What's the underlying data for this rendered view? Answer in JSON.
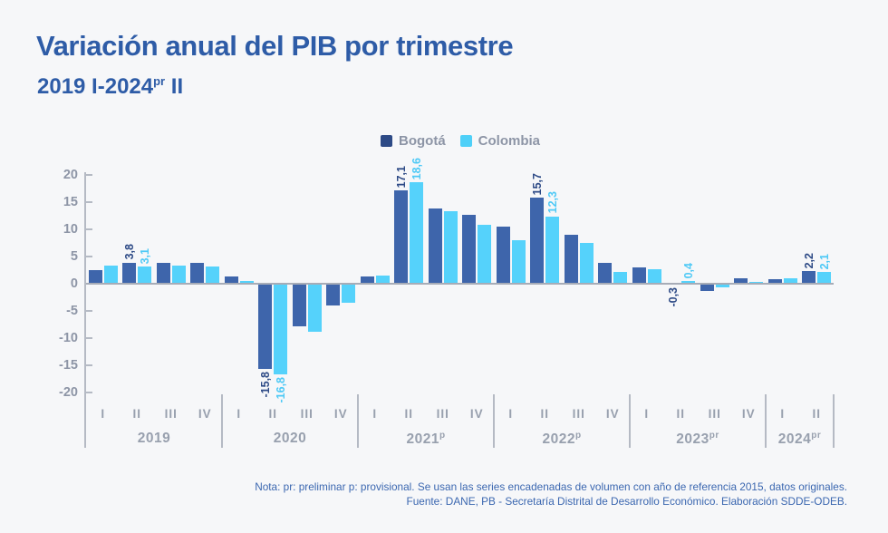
{
  "header": {
    "title": "Variación anual del PIB por trimestre",
    "subtitle_prefix": "2019 I-2024",
    "subtitle_sup": "pr",
    "subtitle_suffix": " II"
  },
  "legend": {
    "items": [
      {
        "label": "Bogotá",
        "color": "#2d4a86"
      },
      {
        "label": "Colombia",
        "color": "#4ed0f8"
      }
    ]
  },
  "chart_data": {
    "type": "bar",
    "title": "Variación anual del PIB por trimestre",
    "subtitle": "2019 I-2024pr II",
    "unit": "%",
    "ylabel": "",
    "xlabel": "",
    "ylim": [
      -20,
      20
    ],
    "y_ticks": [
      20,
      15,
      10,
      5,
      0,
      -5,
      -10,
      -15,
      -20
    ],
    "grid": false,
    "legend_position": "top-center",
    "years": [
      {
        "label": "2019",
        "sup": "",
        "quarters": [
          "I",
          "II",
          "III",
          "IV"
        ]
      },
      {
        "label": "2020",
        "sup": "",
        "quarters": [
          "I",
          "II",
          "III",
          "IV"
        ]
      },
      {
        "label": "2021",
        "sup": "p",
        "quarters": [
          "I",
          "II",
          "III",
          "IV"
        ]
      },
      {
        "label": "2022",
        "sup": "p",
        "quarters": [
          "I",
          "II",
          "III",
          "IV"
        ]
      },
      {
        "label": "2023",
        "sup": "pr",
        "quarters": [
          "I",
          "II",
          "III",
          "IV"
        ]
      },
      {
        "label": "2024",
        "sup": "pr",
        "quarters": [
          "I",
          "II"
        ]
      }
    ],
    "series": [
      {
        "name": "Bogotá",
        "bar_color": "#3e65ab",
        "label_color": "#2d4a86",
        "values": [
          2.4,
          3.8,
          3.7,
          3.8,
          1.2,
          -15.8,
          -7.9,
          -4.1,
          1.2,
          17.1,
          13.8,
          12.6,
          10.4,
          15.7,
          8.9,
          3.7,
          3.0,
          -0.3,
          -1.4,
          1.0,
          0.8,
          2.2
        ]
      },
      {
        "name": "Colombia",
        "bar_color": "#55d2fb",
        "label_color": "#4ec9f6",
        "values": [
          3.3,
          3.1,
          3.2,
          3.1,
          0.5,
          -16.8,
          -8.9,
          -3.5,
          1.4,
          18.6,
          13.2,
          10.8,
          8.0,
          12.3,
          7.4,
          2.1,
          2.6,
          0.4,
          -0.7,
          0.3,
          0.9,
          2.1
        ]
      }
    ],
    "label_indices": [
      1,
      5,
      9,
      13,
      17,
      21
    ],
    "labeled_values": {
      "2019-II": {
        "bogota": "3,8",
        "colombia": "3,1"
      },
      "2020-II": {
        "bogota": "-15,8",
        "colombia": "-16,8"
      },
      "2021-II": {
        "bogota": "17,1",
        "colombia": "18,6"
      },
      "2022-II": {
        "bogota": "15,7",
        "colombia": "12,3"
      },
      "2023-II": {
        "bogota": "-0,3",
        "colombia": "0,4"
      },
      "2024-II": {
        "bogota": "2,2",
        "colombia": "2,1"
      }
    }
  },
  "colors": {
    "background": "#f6f7f9",
    "title": "#2e5ca7",
    "axis_text": "#8d95a6",
    "axis_line": "#b5bac4",
    "zero_line": "#a7acb7",
    "x_label": "#98a0ae",
    "note_text": "#3b67b0"
  },
  "notes": {
    "line1": "Nota: pr: preliminar p: provisional.  Se usan las series encadenadas de volumen con año de referencia 2015, datos originales.",
    "line2": "Fuente: DANE, PB - Secretaría Distrital de Desarrollo Económico. Elaboración SDDE-ODEB."
  }
}
